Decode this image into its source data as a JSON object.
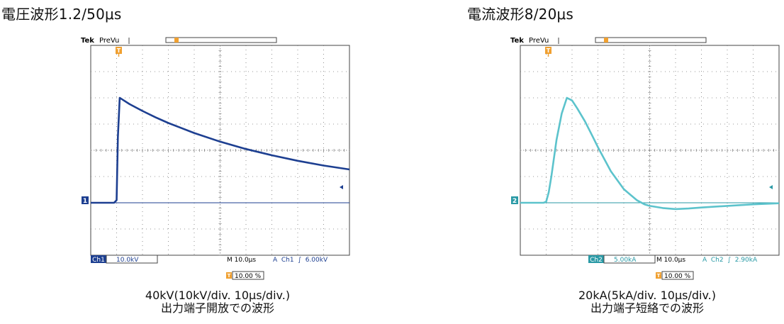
{
  "panels": [
    {
      "title": "電圧波形1.2/50μs",
      "scope": {
        "brand": "Tek",
        "mode": "PreVu",
        "trigger_marker": "T",
        "channel_marker": "1",
        "ch_label": "Ch1",
        "ch_scale": "10.0kV",
        "timebase": "M 10.0μs",
        "trigger_readout": "A  Ch1  ∫  6.00kV",
        "trigger_pos": "10.00 %",
        "trace_color": "#1d3f91",
        "channel_color": "#1d3f91"
      },
      "caption_line1": "40kV(10kV/div. 10μs/div.)",
      "caption_line2": "出力端子開放での波形"
    },
    {
      "title": "電流波形8/20μs",
      "scope": {
        "brand": "Tek",
        "mode": "PreVu",
        "trigger_marker": "T",
        "channel_marker": "2",
        "ch_label": "Ch2",
        "ch_scale": "5.00kA",
        "timebase": "M 10.0μs",
        "trigger_readout": "A  Ch2  ∫  2.90kA",
        "trigger_pos": "10.00 %",
        "trace_color": "#5cc3cc",
        "channel_color": "#2a9aa6"
      },
      "caption_line1": "20kA(5kA/div. 10μs/div.)",
      "caption_line2": "出力端子短絡での波形"
    }
  ],
  "chart_data": [
    {
      "type": "line",
      "title": "電圧波形1.2/50μs",
      "xlabel": "",
      "ylabel": "",
      "x_unit": "μs",
      "y_unit": "kV",
      "xlim": [
        -10,
        90
      ],
      "ylim": [
        -20,
        60
      ],
      "grid": true,
      "series": [
        {
          "x": [
            -10,
            -1,
            0,
            0.5,
            1.2,
            2,
            5,
            10,
            15,
            20,
            30,
            40,
            50,
            60,
            70,
            80,
            90
          ],
          "values": [
            0,
            0,
            1,
            25,
            40,
            39.5,
            37.6,
            35,
            32.6,
            30.4,
            26.6,
            23.3,
            20.5,
            18.1,
            16.0,
            14.2,
            12.7
          ]
        }
      ]
    },
    {
      "type": "line",
      "title": "電流波形8/20μs",
      "xlabel": "",
      "ylabel": "",
      "x_unit": "μs",
      "y_unit": "kA",
      "xlim": [
        -10,
        90
      ],
      "ylim": [
        -10,
        30
      ],
      "grid": true,
      "series": [
        {
          "x": [
            -10,
            -1,
            0,
            1,
            2,
            4,
            6,
            8,
            10,
            12,
            15,
            18,
            20,
            25,
            30,
            35,
            38,
            40,
            45,
            50,
            55,
            60,
            70,
            80,
            90
          ],
          "values": [
            0,
            0,
            0.2,
            2,
            5,
            12,
            17,
            20,
            19.5,
            18,
            15.5,
            12.6,
            10.6,
            6,
            2.6,
            0.5,
            -0.3,
            -0.6,
            -1.0,
            -1.2,
            -1.1,
            -0.9,
            -0.6,
            -0.3,
            -0.1
          ]
        }
      ]
    }
  ]
}
